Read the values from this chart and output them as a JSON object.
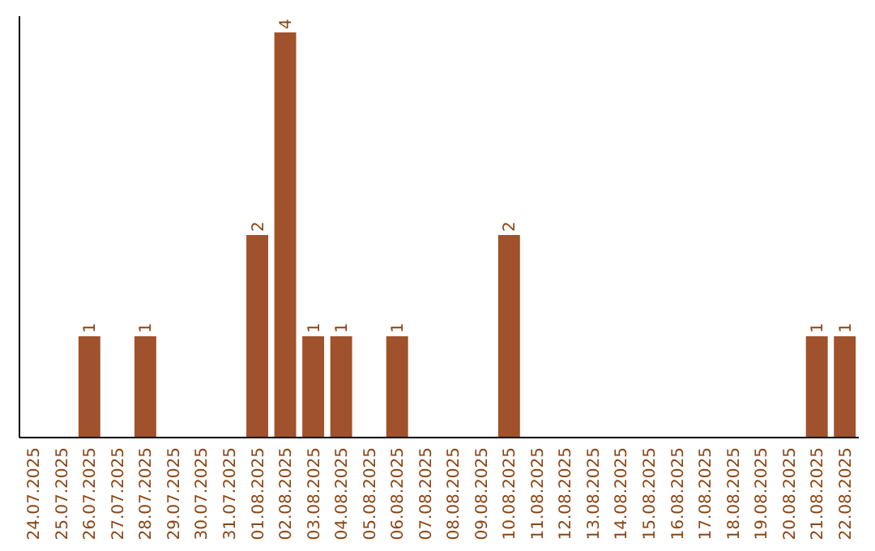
{
  "chart_data": {
    "type": "bar",
    "categories": [
      "24.07.2025",
      "25.07.2025",
      "26.07.2025",
      "27.07.2025",
      "28.07.2025",
      "29.07.2025",
      "30.07.2025",
      "31.07.2025",
      "01.08.2025",
      "02.08.2025",
      "03.08.2025",
      "04.08.2025",
      "05.08.2025",
      "06.08.2025",
      "07.08.2025",
      "08.08.2025",
      "09.08.2025",
      "10.08.2025",
      "11.08.2025",
      "12.08.2025",
      "13.08.2025",
      "14.08.2025",
      "15.08.2025",
      "16.08.2025",
      "17.08.2025",
      "18.08.2025",
      "19.08.2025",
      "20.08.2025",
      "21.08.2025",
      "22.08.2025"
    ],
    "values": [
      0,
      0,
      1,
      0,
      1,
      0,
      0,
      0,
      2,
      4,
      1,
      1,
      0,
      1,
      0,
      0,
      0,
      2,
      0,
      0,
      0,
      0,
      0,
      0,
      0,
      0,
      0,
      0,
      1,
      1
    ],
    "value_labels": [
      null,
      null,
      "1",
      null,
      "1",
      null,
      null,
      null,
      "2",
      "4",
      "1",
      "1",
      null,
      "1",
      null,
      null,
      null,
      "2",
      null,
      null,
      null,
      null,
      null,
      null,
      null,
      null,
      null,
      null,
      "1",
      "1"
    ],
    "color": "#a0522d"
  }
}
